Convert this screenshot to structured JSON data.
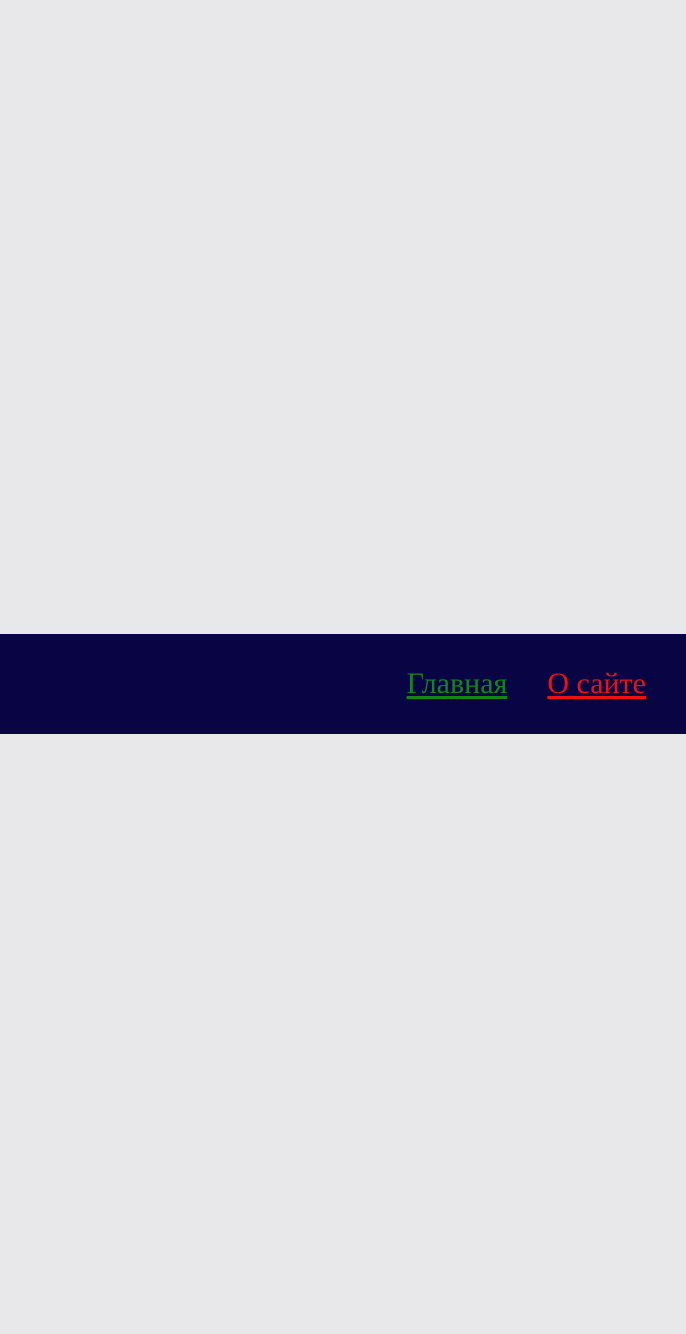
{
  "nav": {
    "background": "#090544",
    "links": [
      {
        "label": "Главная",
        "color": "#118811"
      },
      {
        "label": "О сайте",
        "color": "#ee1111"
      }
    ]
  },
  "page": {
    "background": "#e8e7ea"
  }
}
